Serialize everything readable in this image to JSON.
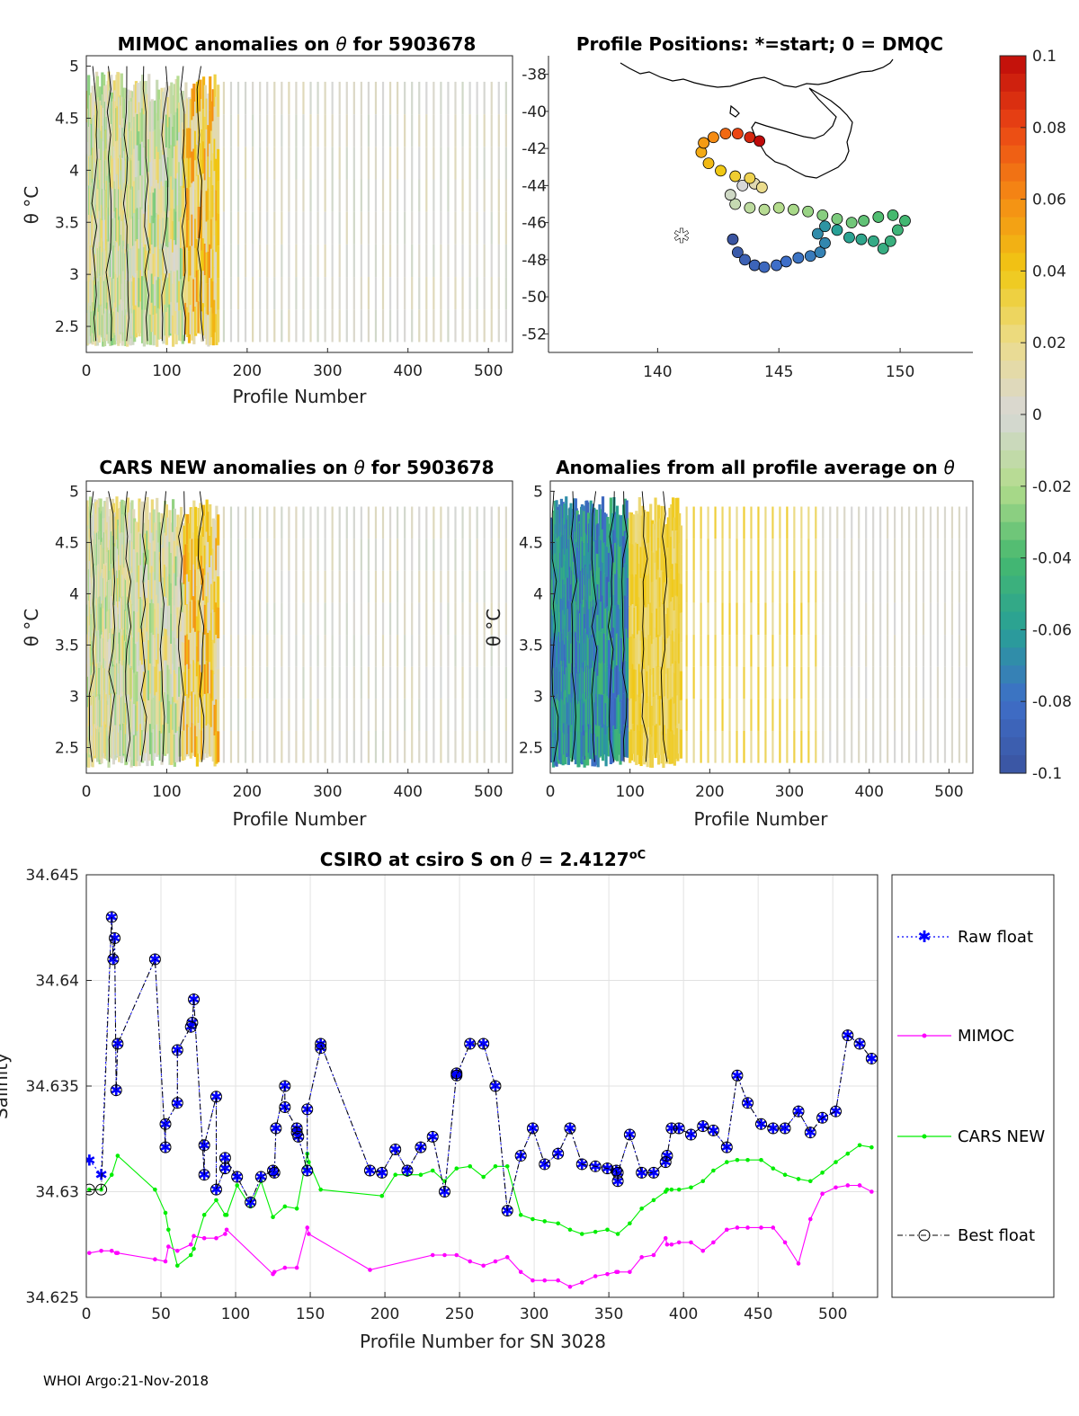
{
  "footer": "WHOI Argo:21-Nov-2018",
  "colorbar": {
    "ticks": [
      "0.1",
      "0.08",
      "0.06",
      "0.04",
      "0.02",
      "0",
      "-0.02",
      "-0.04",
      "-0.06",
      "-0.08",
      "-0.1"
    ],
    "range": [
      -0.1,
      0.1
    ]
  },
  "chart_data": [
    {
      "type": "heatmap",
      "title_main": "MIMOC anomalies on ",
      "title_theta": "θ",
      "title_tail": "  for 5903678",
      "ylabel": "θ °C",
      "xlabel": "Profile Number",
      "xlim": [
        0,
        530
      ],
      "ylim": [
        2.25,
        5.1
      ],
      "xticks": [
        "0",
        "100",
        "200",
        "300",
        "400",
        "500"
      ],
      "yticks": [
        "5",
        "4.5",
        "4",
        "3.5",
        "3",
        "2.5"
      ],
      "profile_columns": "one vertical stripe per profile; colour = anomaly value"
    },
    {
      "type": "scatter",
      "title": "Profile Positions: *=start; 0 = DMQC",
      "xlim": [
        135.5,
        153
      ],
      "ylim": [
        -53,
        -37
      ],
      "xticks": [
        "140",
        "145",
        "150"
      ],
      "yticks": [
        "-38",
        "-40",
        "-42",
        "-44",
        "-46",
        "-48",
        "-50",
        "-52"
      ],
      "track": [
        {
          "lon": 143.1,
          "lat": -46.9,
          "c": -0.1
        },
        {
          "lon": 143.3,
          "lat": -47.6,
          "c": -0.095
        },
        {
          "lon": 143.6,
          "lat": -48.0,
          "c": -0.09
        },
        {
          "lon": 144.0,
          "lat": -48.3,
          "c": -0.088
        },
        {
          "lon": 144.4,
          "lat": -48.4,
          "c": -0.085
        },
        {
          "lon": 144.9,
          "lat": -48.3,
          "c": -0.08
        },
        {
          "lon": 145.3,
          "lat": -48.1,
          "c": -0.08
        },
        {
          "lon": 145.8,
          "lat": -47.9,
          "c": -0.078
        },
        {
          "lon": 146.3,
          "lat": -47.8,
          "c": -0.075
        },
        {
          "lon": 146.7,
          "lat": -47.6,
          "c": -0.072
        },
        {
          "lon": 146.9,
          "lat": -47.1,
          "c": -0.07
        },
        {
          "lon": 146.6,
          "lat": -46.6,
          "c": -0.068
        },
        {
          "lon": 146.9,
          "lat": -46.2,
          "c": -0.065
        },
        {
          "lon": 147.4,
          "lat": -46.4,
          "c": -0.06
        },
        {
          "lon": 147.9,
          "lat": -46.8,
          "c": -0.058
        },
        {
          "lon": 148.4,
          "lat": -46.9,
          "c": -0.055
        },
        {
          "lon": 148.9,
          "lat": -47.0,
          "c": -0.052
        },
        {
          "lon": 149.3,
          "lat": -47.4,
          "c": -0.05
        },
        {
          "lon": 149.6,
          "lat": -47.0,
          "c": -0.048
        },
        {
          "lon": 149.9,
          "lat": -46.4,
          "c": -0.045
        },
        {
          "lon": 150.2,
          "lat": -45.9,
          "c": -0.042
        },
        {
          "lon": 149.7,
          "lat": -45.6,
          "c": -0.04
        },
        {
          "lon": 149.1,
          "lat": -45.7,
          "c": -0.038
        },
        {
          "lon": 148.5,
          "lat": -45.9,
          "c": -0.035
        },
        {
          "lon": 148.0,
          "lat": -46.0,
          "c": -0.032
        },
        {
          "lon": 147.4,
          "lat": -45.8,
          "c": -0.03
        },
        {
          "lon": 146.8,
          "lat": -45.6,
          "c": -0.028
        },
        {
          "lon": 146.2,
          "lat": -45.4,
          "c": -0.025
        },
        {
          "lon": 145.6,
          "lat": -45.3,
          "c": -0.022
        },
        {
          "lon": 145.0,
          "lat": -45.2,
          "c": -0.02
        },
        {
          "lon": 144.4,
          "lat": -45.3,
          "c": -0.018
        },
        {
          "lon": 143.8,
          "lat": -45.2,
          "c": -0.015
        },
        {
          "lon": 143.2,
          "lat": -45.0,
          "c": -0.01
        },
        {
          "lon": 143.0,
          "lat": -44.5,
          "c": -0.005
        },
        {
          "lon": 143.5,
          "lat": -44.0,
          "c": 0.0
        },
        {
          "lon": 144.0,
          "lat": -43.9,
          "c": 0.01
        },
        {
          "lon": 144.3,
          "lat": -44.1,
          "c": 0.02
        },
        {
          "lon": 143.8,
          "lat": -43.6,
          "c": 0.03
        },
        {
          "lon": 143.2,
          "lat": -43.5,
          "c": 0.035
        },
        {
          "lon": 142.6,
          "lat": -43.2,
          "c": 0.04
        },
        {
          "lon": 142.1,
          "lat": -42.8,
          "c": 0.045
        },
        {
          "lon": 141.8,
          "lat": -42.2,
          "c": 0.05
        },
        {
          "lon": 141.9,
          "lat": -41.7,
          "c": 0.055
        },
        {
          "lon": 142.3,
          "lat": -41.4,
          "c": 0.06
        },
        {
          "lon": 142.8,
          "lat": -41.2,
          "c": 0.07
        },
        {
          "lon": 143.3,
          "lat": -41.2,
          "c": 0.08
        },
        {
          "lon": 143.8,
          "lat": -41.4,
          "c": 0.09
        },
        {
          "lon": 144.2,
          "lat": -41.6,
          "c": 0.1
        }
      ]
    },
    {
      "type": "heatmap",
      "title_main": "CARS NEW anomalies on ",
      "title_theta": "θ",
      "title_tail": " for 5903678",
      "ylabel": "θ °C",
      "xlabel": "Profile Number",
      "xlim": [
        0,
        530
      ],
      "ylim": [
        2.25,
        5.1
      ],
      "xticks": [
        "0",
        "100",
        "200",
        "300",
        "400",
        "500"
      ],
      "yticks": [
        "5",
        "4.5",
        "4",
        "3.5",
        "3",
        "2.5"
      ]
    },
    {
      "type": "heatmap",
      "title_main": "Anomalies from all profile average on ",
      "title_theta": "θ",
      "title_tail": "",
      "ylabel": "θ °C",
      "xlabel": "Profile Number",
      "xlim": [
        0,
        530
      ],
      "ylim": [
        2.25,
        5.1
      ],
      "xticks": [
        "0",
        "100",
        "200",
        "300",
        "400",
        "500"
      ],
      "yticks": [
        "5",
        "4.5",
        "4",
        "3.5",
        "3",
        "2.5"
      ]
    },
    {
      "type": "line",
      "title_main": "CSIRO at csiro S on ",
      "title_theta": "θ",
      "title_value": " = 2.4127",
      "title_unit": "oC",
      "xlabel": "Profile Number for SN 3028",
      "ylabel": "Salinity",
      "xlim": [
        0,
        530
      ],
      "ylim": [
        34.625,
        34.645
      ],
      "xticks": [
        "0",
        "50",
        "100",
        "150",
        "200",
        "250",
        "300",
        "350",
        "400",
        "450",
        "500"
      ],
      "yticks": [
        "34.645",
        "34.64",
        "34.635",
        "34.63",
        "34.625"
      ],
      "grid": true,
      "legend": [
        "Raw float",
        "MIMOC",
        "CARS NEW",
        "Best float"
      ],
      "series": [
        {
          "name": "Raw float",
          "color": "#0000ff",
          "x": [
            2,
            10,
            17,
            18,
            19,
            20,
            21,
            46,
            53,
            53,
            61,
            61,
            70,
            71,
            72,
            79,
            79,
            87,
            87,
            93,
            93,
            101,
            110,
            117,
            125,
            126,
            127,
            133,
            133,
            141,
            141,
            142,
            148,
            148,
            157,
            157,
            190,
            198,
            207,
            215,
            224,
            232,
            240,
            248,
            248,
            257,
            266,
            274,
            282,
            291,
            299,
            307,
            316,
            324,
            332,
            341,
            349,
            355,
            356,
            356,
            364,
            372,
            380,
            388,
            389,
            392,
            397,
            405,
            413,
            420,
            429,
            436,
            443,
            452,
            460,
            468,
            477,
            485,
            493,
            502,
            510,
            518,
            526
          ],
          "y": [
            34.6315,
            34.6308,
            34.643,
            34.641,
            34.642,
            34.6348,
            34.637,
            34.641,
            34.6321,
            34.6332,
            34.6342,
            34.6367,
            34.6378,
            34.638,
            34.6391,
            34.6308,
            34.6322,
            34.6345,
            34.6301,
            34.6311,
            34.6316,
            34.6307,
            34.6295,
            34.6307,
            34.631,
            34.6309,
            34.633,
            34.635,
            34.634,
            34.633,
            34.6328,
            34.6326,
            34.631,
            34.6339,
            34.6368,
            34.637,
            34.631,
            34.6309,
            34.632,
            34.631,
            34.6321,
            34.6326,
            34.63,
            34.6356,
            34.6355,
            34.637,
            34.637,
            34.635,
            34.6291,
            34.6317,
            34.633,
            34.6313,
            34.6318,
            34.633,
            34.6313,
            34.6312,
            34.6311,
            34.631,
            34.6305,
            34.6309,
            34.6327,
            34.6309,
            34.6309,
            34.6314,
            34.6317,
            34.633,
            34.633,
            34.6327,
            34.6331,
            34.6329,
            34.6321,
            34.6355,
            34.6342,
            34.6332,
            34.633,
            34.633,
            34.6338,
            34.6328,
            34.6335,
            34.6338,
            34.6374,
            34.637,
            34.6363
          ]
        },
        {
          "name": "MIMOC",
          "color": "#ff00ff",
          "x": [
            2,
            10,
            17,
            20,
            21,
            46,
            53,
            55,
            61,
            70,
            72,
            79,
            87,
            93,
            94,
            125,
            126,
            133,
            141,
            148,
            149,
            190,
            232,
            240,
            248,
            257,
            266,
            274,
            282,
            291,
            299,
            307,
            316,
            324,
            332,
            341,
            349,
            355,
            356,
            364,
            372,
            380,
            388,
            389,
            392,
            397,
            405,
            413,
            420,
            429,
            436,
            443,
            452,
            460,
            468,
            477,
            485,
            493,
            502,
            510,
            518,
            526
          ],
          "y": [
            34.6271,
            34.6272,
            34.6272,
            34.6271,
            34.6271,
            34.6268,
            34.6267,
            34.6274,
            34.6272,
            34.6275,
            34.6279,
            34.6278,
            34.6278,
            34.628,
            34.6282,
            34.6261,
            34.6262,
            34.6264,
            34.6264,
            34.6283,
            34.628,
            34.6263,
            34.627,
            34.627,
            34.627,
            34.6267,
            34.6265,
            34.6267,
            34.6269,
            34.6262,
            34.6258,
            34.6258,
            34.6258,
            34.6255,
            34.6257,
            34.626,
            34.6261,
            34.6262,
            34.6262,
            34.6262,
            34.6269,
            34.627,
            34.6278,
            34.6275,
            34.6275,
            34.6276,
            34.6276,
            34.6272,
            34.6276,
            34.6282,
            34.6283,
            34.6283,
            34.6283,
            34.6283,
            34.6276,
            34.6266,
            34.6287,
            34.6299,
            34.6302,
            34.6303,
            34.6303,
            34.63
          ]
        },
        {
          "name": "CARS NEW",
          "color": "#00ee00",
          "x": [
            2,
            10,
            17,
            21,
            46,
            53,
            55,
            61,
            70,
            72,
            79,
            87,
            93,
            94,
            101,
            110,
            117,
            125,
            133,
            141,
            148,
            149,
            157,
            198,
            207,
            215,
            224,
            232,
            240,
            248,
            257,
            266,
            274,
            282,
            291,
            299,
            307,
            316,
            324,
            332,
            341,
            349,
            356,
            364,
            372,
            380,
            388,
            389,
            392,
            397,
            405,
            413,
            420,
            429,
            436,
            443,
            452,
            460,
            468,
            477,
            485,
            493,
            502,
            510,
            518,
            526
          ],
          "y": [
            34.6301,
            34.6301,
            34.6308,
            34.6317,
            34.6301,
            34.629,
            34.6282,
            34.6265,
            34.627,
            34.6273,
            34.6289,
            34.6296,
            34.6289,
            34.6289,
            34.6303,
            34.6293,
            34.6305,
            34.6288,
            34.6293,
            34.6292,
            34.6318,
            34.6314,
            34.6301,
            34.6298,
            34.6308,
            34.6308,
            34.6308,
            34.631,
            34.6305,
            34.6311,
            34.6312,
            34.6307,
            34.6312,
            34.6312,
            34.6289,
            34.6287,
            34.6286,
            34.6285,
            34.6282,
            34.628,
            34.6281,
            34.6282,
            34.628,
            34.6285,
            34.6292,
            34.6296,
            34.63,
            34.6301,
            34.6301,
            34.6301,
            34.6302,
            34.6305,
            34.631,
            34.6314,
            34.6315,
            34.6315,
            34.6315,
            34.6311,
            34.6308,
            34.6306,
            34.6305,
            34.6309,
            34.6314,
            34.6318,
            34.6322,
            34.6321
          ]
        },
        {
          "name": "Best float",
          "color": "#000000",
          "x": [
            2,
            10,
            17,
            18,
            19,
            20,
            21,
            46,
            53,
            53,
            61,
            61,
            70,
            71,
            72,
            79,
            79,
            87,
            87,
            93,
            93,
            101,
            110,
            117,
            125,
            126,
            127,
            133,
            133,
            141,
            141,
            142,
            148,
            148,
            157,
            157,
            190,
            198,
            207,
            215,
            224,
            232,
            240,
            248,
            248,
            257,
            266,
            274,
            282,
            291,
            299,
            307,
            316,
            324,
            332,
            341,
            349,
            355,
            356,
            356,
            364,
            372,
            380,
            388,
            389,
            392,
            397,
            405,
            413,
            420,
            429,
            436,
            443,
            452,
            460,
            468,
            477,
            485,
            493,
            502,
            510,
            518,
            526
          ],
          "y": [
            34.6301,
            34.6301,
            34.643,
            34.641,
            34.642,
            34.6348,
            34.637,
            34.641,
            34.6321,
            34.6332,
            34.6342,
            34.6367,
            34.6378,
            34.638,
            34.6391,
            34.6308,
            34.6322,
            34.6345,
            34.6301,
            34.6311,
            34.6316,
            34.6307,
            34.6295,
            34.6307,
            34.631,
            34.6309,
            34.633,
            34.635,
            34.634,
            34.633,
            34.6328,
            34.6326,
            34.631,
            34.6339,
            34.6368,
            34.637,
            34.631,
            34.6309,
            34.632,
            34.631,
            34.6321,
            34.6326,
            34.63,
            34.6356,
            34.6355,
            34.637,
            34.637,
            34.635,
            34.6291,
            34.6317,
            34.633,
            34.6313,
            34.6318,
            34.633,
            34.6313,
            34.6312,
            34.6311,
            34.631,
            34.6305,
            34.6309,
            34.6327,
            34.6309,
            34.6309,
            34.6314,
            34.6317,
            34.633,
            34.633,
            34.6327,
            34.6331,
            34.6329,
            34.6321,
            34.6355,
            34.6342,
            34.6332,
            34.633,
            34.633,
            34.6338,
            34.6328,
            34.6335,
            34.6338,
            34.6374,
            34.637,
            34.6363
          ]
        }
      ]
    }
  ]
}
